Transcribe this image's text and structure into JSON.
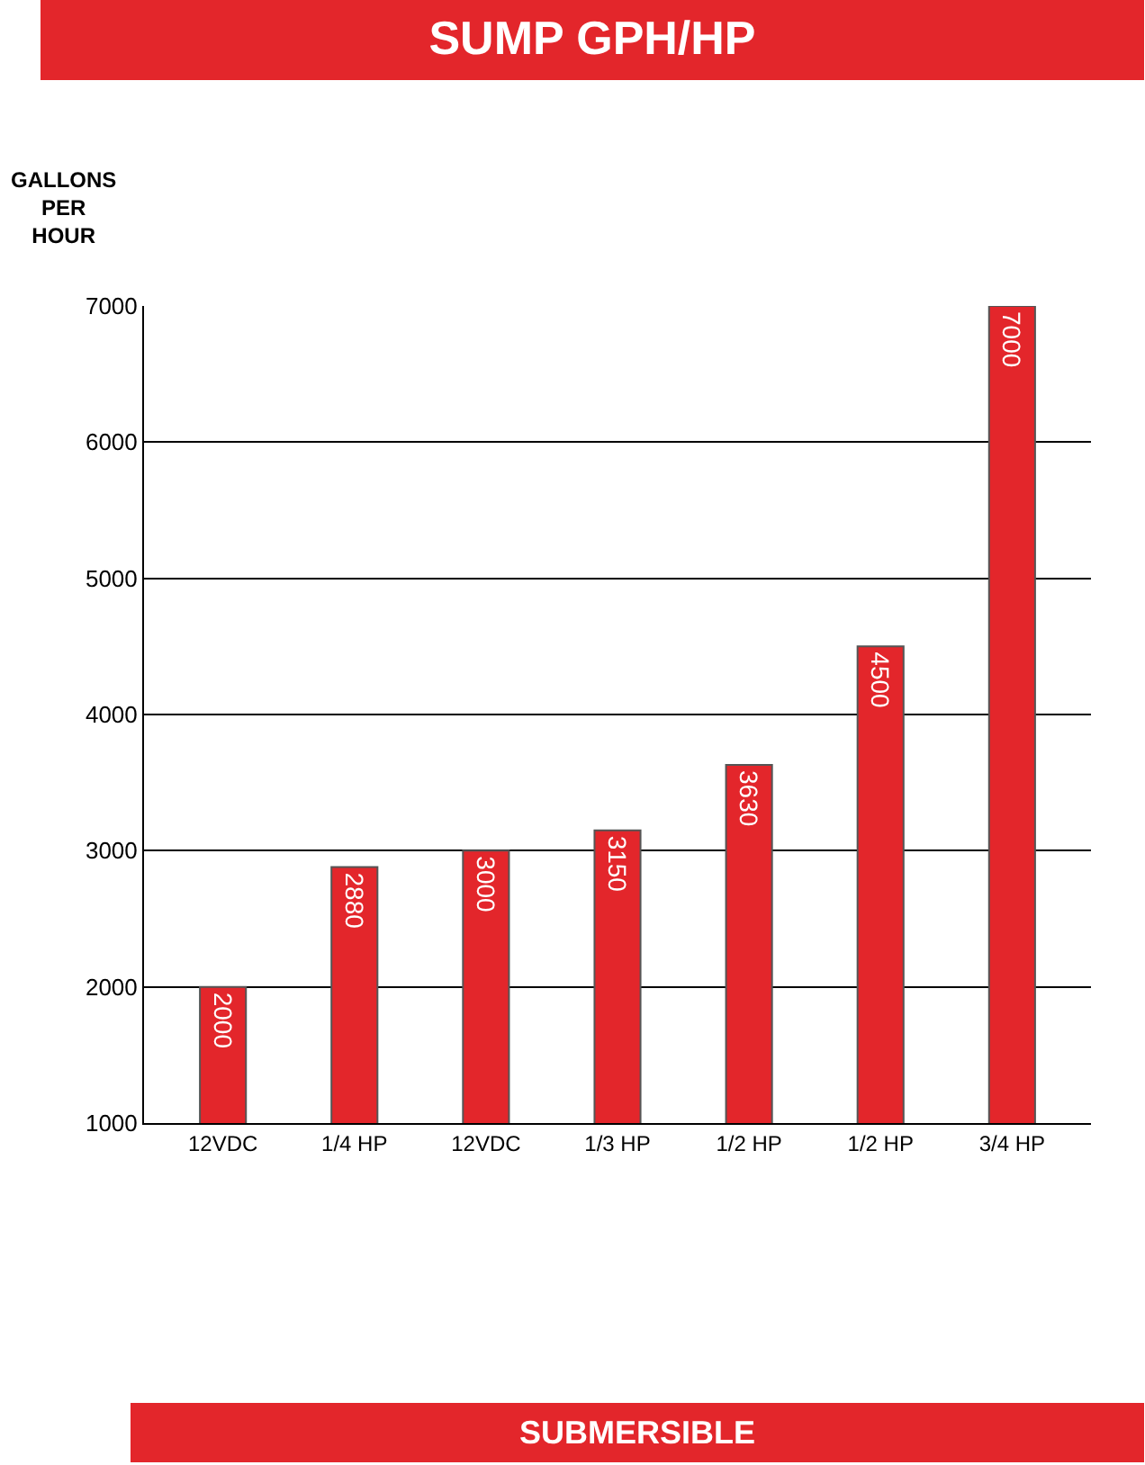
{
  "chart_data": {
    "type": "bar",
    "title": "SUMP GPH/HP",
    "ylabel": "GALLONS PER HOUR",
    "categories": [
      "12VDC",
      "1/4 HP",
      "12VDC",
      "1/3 HP",
      "1/2 HP",
      "1/2 HP",
      "3/4 HP"
    ],
    "values": [
      2000,
      2880,
      3000,
      3150,
      3630,
      4500,
      7000
    ],
    "color": "#e3262b",
    "ylim": [
      1000,
      7000
    ],
    "yticks": [
      1000,
      2000,
      3000,
      4000,
      5000,
      6000,
      7000
    ],
    "grid": "y",
    "data_labels": true,
    "annotations": [
      "SUBMERSIBLE"
    ]
  }
}
